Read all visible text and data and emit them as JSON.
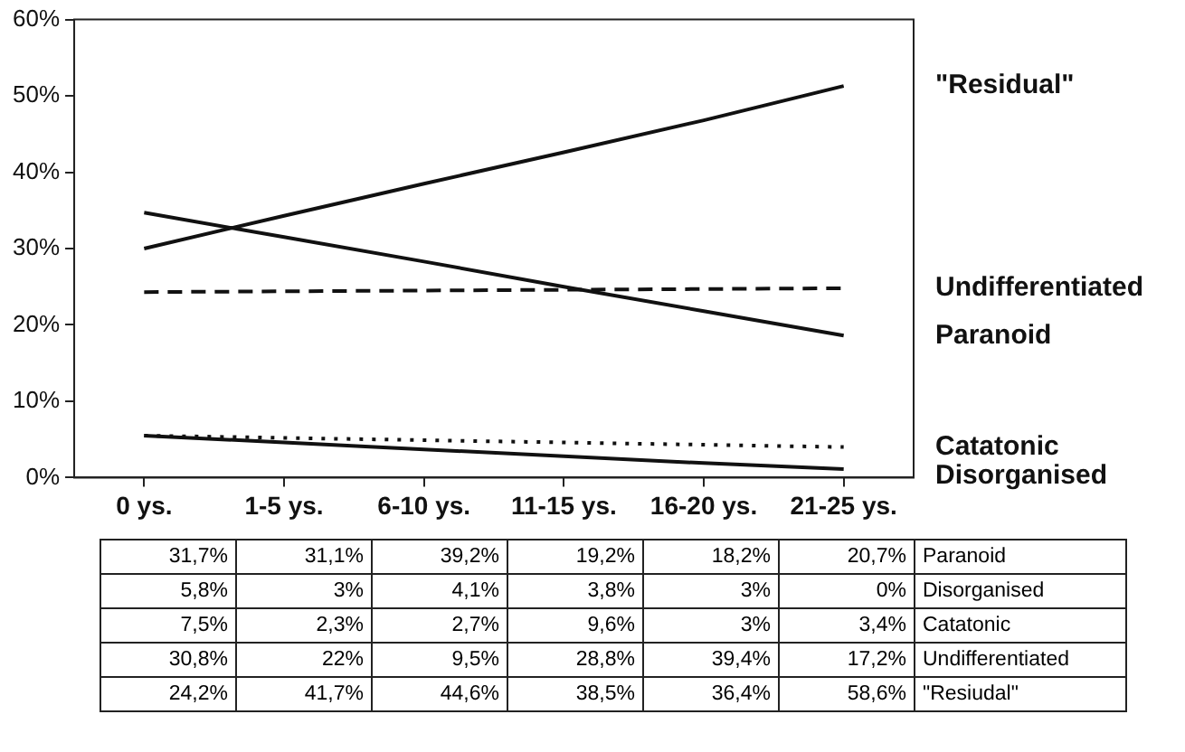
{
  "chart_data": {
    "type": "line",
    "categories": [
      "0 ys.",
      "1-5 ys.",
      "6-10 ys.",
      "11-15 ys.",
      "16-20 ys.",
      "21-25 ys."
    ],
    "series": [
      {
        "name": "\"Residual\"",
        "color": "#111111",
        "line_style": "solid",
        "values": [
          30,
          34.3,
          38.5,
          42.6,
          46.8,
          51.3
        ]
      },
      {
        "name": "Undifferentiated",
        "color": "#111111",
        "line_style": "dashed",
        "values": [
          24.3,
          24.4,
          24.5,
          24.6,
          24.7,
          24.8
        ]
      },
      {
        "name": "Paranoid",
        "color": "#111111",
        "line_style": "solid",
        "values": [
          34.7,
          31.5,
          28.3,
          25,
          21.8,
          18.6
        ]
      },
      {
        "name": "Catatonic",
        "color": "#111111",
        "line_style": "dotted",
        "values": [
          5.5,
          5.2,
          4.9,
          4.6,
          4.3,
          4
        ]
      },
      {
        "name": "Disorganised",
        "color": "#111111",
        "line_style": "solid",
        "values": [
          5.5,
          4.6,
          3.7,
          2.8,
          1.9,
          1.1
        ]
      }
    ],
    "ylim": [
      0,
      60
    ],
    "yticks": [
      {
        "value": 0,
        "label": "0%"
      },
      {
        "value": 10,
        "label": "10%"
      },
      {
        "value": 20,
        "label": "20%"
      },
      {
        "value": 30,
        "label": "30%"
      },
      {
        "value": 40,
        "label": "40%"
      },
      {
        "value": 50,
        "label": "50%"
      },
      {
        "value": 60,
        "label": "60%"
      }
    ],
    "grid": false,
    "legend": false,
    "marker": "none",
    "annotations": [
      "31,7%",
      "31,1%",
      "39,2%",
      "19,2%",
      "18,2%",
      "20,7%",
      "Paranoid",
      "5,8%",
      "3%",
      "4,1%",
      "3,8%",
      "3%",
      "0%",
      "Disorganised",
      "7,5%",
      "2,3%",
      "2,7%",
      "9,6%",
      "3%",
      "3,4%",
      "Catatonic",
      "30,8%",
      "22%",
      "9,5%",
      "28,8%",
      "39,4%",
      "17,2%",
      "Undifferentiated",
      "24,2%",
      "41,7%",
      "44,6%",
      "38,5%",
      "36,4%",
      "58,6%",
      "\"Resiudal\""
    ]
  }
}
